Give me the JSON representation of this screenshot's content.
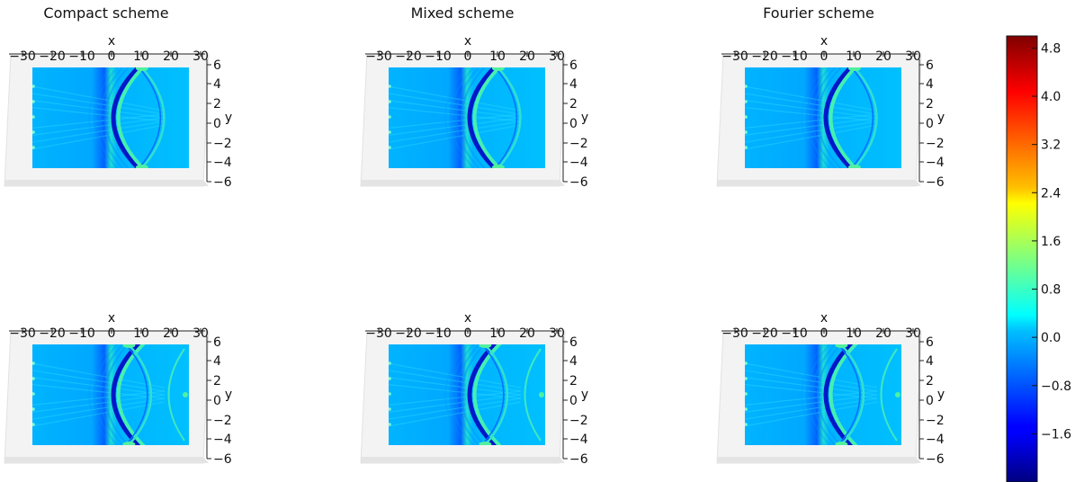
{
  "chart_data": {
    "type": "heatmap",
    "colormap": "jet",
    "columns": [
      "Compact scheme",
      "Mixed scheme",
      "Fourier scheme"
    ],
    "x_axis": {
      "label": "x",
      "ticks": [
        "−30",
        "−20",
        "−10",
        "0",
        "10",
        "20",
        "30"
      ],
      "range": [
        -30,
        30
      ]
    },
    "y_axis": {
      "label": "y",
      "ticks": [
        "6",
        "4",
        "2",
        "0",
        "−2",
        "−4",
        "−6"
      ],
      "range": [
        -6,
        6
      ]
    },
    "panels": [
      {
        "row": 0,
        "col": 0,
        "front_x": 0,
        "back_x": 11
      },
      {
        "row": 0,
        "col": 1,
        "front_x": 0,
        "back_x": 11
      },
      {
        "row": 0,
        "col": 2,
        "front_x": 0,
        "back_x": 11
      },
      {
        "row": 1,
        "col": 0,
        "front_x": 0,
        "back_x": 6
      },
      {
        "row": 1,
        "col": 1,
        "front_x": 0,
        "back_x": 6
      },
      {
        "row": 1,
        "col": 2,
        "front_x": 0,
        "back_x": 6
      }
    ],
    "colorbar": {
      "range": [
        -2.4,
        5.0
      ],
      "ticks": [
        {
          "value": 4.8,
          "label": "4.8"
        },
        {
          "value": 4.0,
          "label": "4.0"
        },
        {
          "value": 3.2,
          "label": "3.2"
        },
        {
          "value": 2.4,
          "label": "2.4"
        },
        {
          "value": 1.6,
          "label": "1.6"
        },
        {
          "value": 0.8,
          "label": "0.8"
        },
        {
          "value": 0.0,
          "label": "0.0"
        },
        {
          "value": -0.8,
          "label": "−0.8"
        },
        {
          "value": -1.6,
          "label": "−1.6"
        }
      ]
    }
  }
}
